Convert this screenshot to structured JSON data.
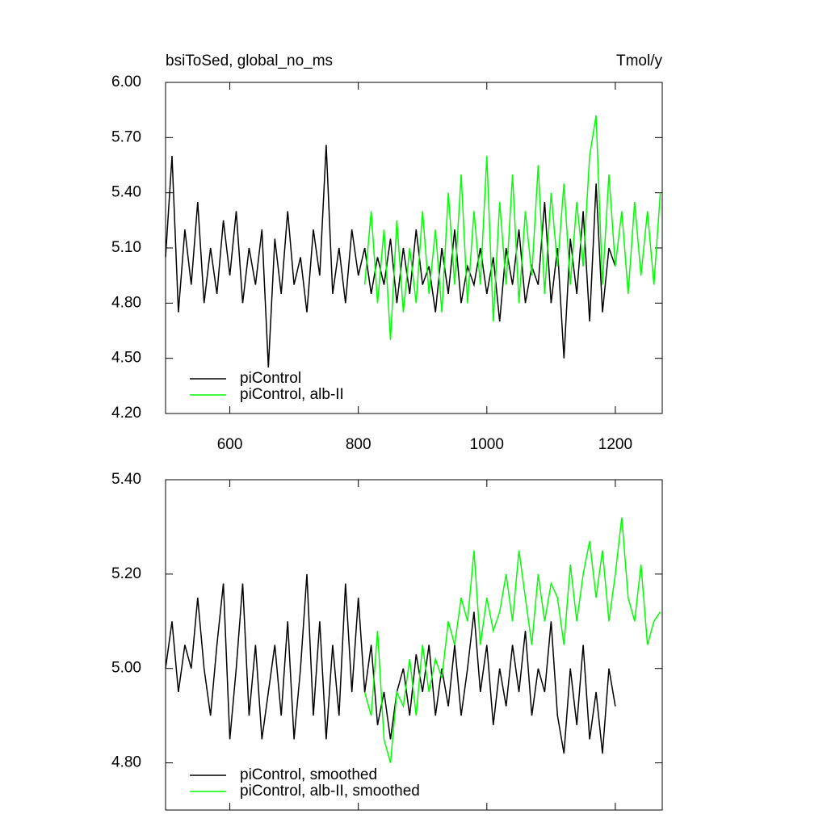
{
  "chart_data": [
    {
      "type": "line",
      "title": "bsiToSed, global_no_ms",
      "units": "Tmol/y",
      "xlim": [
        500,
        1273
      ],
      "xticks": [
        600,
        800,
        1000,
        1200
      ],
      "xtick_labels": true,
      "ylim": [
        4.2,
        6.0
      ],
      "yticks": [
        {
          "value": 4.2,
          "label": "4.20"
        },
        {
          "value": 4.5,
          "label": "4.50"
        },
        {
          "value": 4.8,
          "label": "4.80"
        },
        {
          "value": 5.1,
          "label": "5.10"
        },
        {
          "value": 5.4,
          "label": "5.40"
        },
        {
          "value": 5.7,
          "label": "5.70"
        },
        {
          "value": 6.0,
          "label": "6.00"
        }
      ],
      "legend": "lower left",
      "series": [
        {
          "name": "piControl",
          "color": "#000000",
          "x": [
            500,
            510,
            520,
            530,
            540,
            550,
            560,
            570,
            580,
            590,
            600,
            610,
            620,
            630,
            640,
            650,
            660,
            670,
            680,
            690,
            700,
            710,
            720,
            730,
            740,
            750,
            760,
            770,
            780,
            790,
            800,
            810,
            820,
            830,
            840,
            850,
            860,
            870,
            880,
            890,
            900,
            910,
            920,
            930,
            940,
            950,
            960,
            970,
            980,
            990,
            1000,
            1010,
            1020,
            1030,
            1040,
            1050,
            1060,
            1070,
            1080,
            1090,
            1100,
            1110,
            1120,
            1130,
            1140,
            1150,
            1160,
            1170,
            1180,
            1190,
            1200
          ],
          "values": [
            5.05,
            5.6,
            4.75,
            5.2,
            4.9,
            5.35,
            4.8,
            5.1,
            4.85,
            5.25,
            4.95,
            5.3,
            4.8,
            5.1,
            4.9,
            5.2,
            4.45,
            5.15,
            4.85,
            5.3,
            4.9,
            5.05,
            4.75,
            5.2,
            4.95,
            5.66,
            4.85,
            5.1,
            4.8,
            5.2,
            4.95,
            5.1,
            4.85,
            5.05,
            4.9,
            5.15,
            4.8,
            5.1,
            4.85,
            5.2,
            4.9,
            5.0,
            4.75,
            5.1,
            4.85,
            5.2,
            4.8,
            5.0,
            4.9,
            5.1,
            4.85,
            5.05,
            4.7,
            5.1,
            4.9,
            5.2,
            4.8,
            5.0,
            4.9,
            5.35,
            4.8,
            5.1,
            4.5,
            5.15,
            4.85,
            5.3,
            4.7,
            5.45,
            4.75,
            5.1,
            5.0
          ]
        },
        {
          "name": "piControl, alb-II",
          "color": "#00ff00",
          "x": [
            810,
            820,
            830,
            840,
            850,
            860,
            870,
            880,
            890,
            900,
            910,
            920,
            930,
            940,
            950,
            960,
            970,
            980,
            990,
            1000,
            1010,
            1020,
            1030,
            1040,
            1050,
            1060,
            1070,
            1080,
            1090,
            1100,
            1110,
            1120,
            1130,
            1140,
            1150,
            1160,
            1170,
            1180,
            1190,
            1200,
            1210,
            1220,
            1230,
            1240,
            1250,
            1260,
            1270
          ],
          "values": [
            4.9,
            5.3,
            4.8,
            5.2,
            4.6,
            5.25,
            4.75,
            5.1,
            4.8,
            5.3,
            4.85,
            5.2,
            4.75,
            5.4,
            4.9,
            5.5,
            4.8,
            5.3,
            4.9,
            5.6,
            4.7,
            5.35,
            4.9,
            5.5,
            4.8,
            5.3,
            4.95,
            5.55,
            4.85,
            5.4,
            5.0,
            5.45,
            4.9,
            5.35,
            5.0,
            5.6,
            5.82,
            4.9,
            5.5,
            5.0,
            5.3,
            4.85,
            5.35,
            4.95,
            5.3,
            4.9,
            5.4
          ]
        }
      ]
    },
    {
      "type": "line",
      "xlim": [
        500,
        1273
      ],
      "xticks": [
        600,
        800,
        1000,
        1200
      ],
      "xtick_labels": false,
      "ylim": [
        4.7,
        5.4
      ],
      "yticks": [
        {
          "value": 4.8,
          "label": "4.80"
        },
        {
          "value": 5.0,
          "label": "5.00"
        },
        {
          "value": 5.2,
          "label": "5.20"
        },
        {
          "value": 5.4,
          "label": "5.40"
        }
      ],
      "legend": "lower left",
      "series": [
        {
          "name": "piControl, smoothed",
          "color": "#000000",
          "x": [
            500,
            510,
            520,
            530,
            540,
            550,
            560,
            570,
            580,
            590,
            600,
            610,
            620,
            630,
            640,
            650,
            660,
            670,
            680,
            690,
            700,
            710,
            720,
            730,
            740,
            750,
            760,
            770,
            780,
            790,
            800,
            810,
            820,
            830,
            840,
            850,
            860,
            870,
            880,
            890,
            900,
            910,
            920,
            930,
            940,
            950,
            960,
            970,
            980,
            990,
            1000,
            1010,
            1020,
            1030,
            1040,
            1050,
            1060,
            1070,
            1080,
            1090,
            1100,
            1110,
            1120,
            1130,
            1140,
            1150,
            1160,
            1170,
            1180,
            1190,
            1200
          ],
          "values": [
            5.0,
            5.1,
            4.95,
            5.05,
            5.0,
            5.15,
            5.0,
            4.9,
            5.05,
            5.18,
            4.85,
            5.0,
            5.18,
            4.9,
            5.05,
            4.85,
            4.95,
            5.05,
            4.9,
            5.1,
            4.85,
            5.0,
            5.2,
            4.9,
            5.1,
            4.85,
            5.05,
            4.9,
            5.18,
            4.95,
            5.15,
            4.95,
            5.05,
            4.88,
            4.95,
            4.85,
            4.95,
            5.0,
            4.9,
            5.03,
            4.95,
            5.05,
            4.9,
            5.0,
            4.92,
            5.05,
            4.9,
            5.0,
            5.12,
            4.95,
            5.05,
            4.88,
            5.0,
            4.92,
            5.05,
            4.95,
            5.08,
            4.9,
            5.0,
            4.95,
            5.1,
            4.9,
            4.82,
            5.0,
            4.88,
            5.05,
            4.85,
            4.95,
            4.82,
            5.0,
            4.92
          ]
        },
        {
          "name": "piControl, alb-II, smoothed",
          "color": "#00ff00",
          "x": [
            810,
            820,
            830,
            840,
            850,
            860,
            870,
            880,
            890,
            900,
            910,
            920,
            930,
            940,
            950,
            960,
            970,
            980,
            990,
            1000,
            1010,
            1020,
            1030,
            1040,
            1050,
            1060,
            1070,
            1080,
            1090,
            1100,
            1110,
            1120,
            1130,
            1140,
            1150,
            1160,
            1170,
            1180,
            1190,
            1200,
            1210,
            1220,
            1230,
            1240,
            1250,
            1260,
            1270
          ],
          "values": [
            4.95,
            4.9,
            5.08,
            4.85,
            4.8,
            4.95,
            4.92,
            5.02,
            4.9,
            5.05,
            4.95,
            5.02,
            4.98,
            5.1,
            5.05,
            5.15,
            5.1,
            5.25,
            5.05,
            5.15,
            5.08,
            5.12,
            5.2,
            5.1,
            5.25,
            5.15,
            5.05,
            5.2,
            5.1,
            5.18,
            5.15,
            5.05,
            5.22,
            5.1,
            5.2,
            5.27,
            5.15,
            5.25,
            5.1,
            5.2,
            5.32,
            5.15,
            5.1,
            5.22,
            5.05,
            5.1,
            5.12
          ]
        }
      ]
    }
  ]
}
